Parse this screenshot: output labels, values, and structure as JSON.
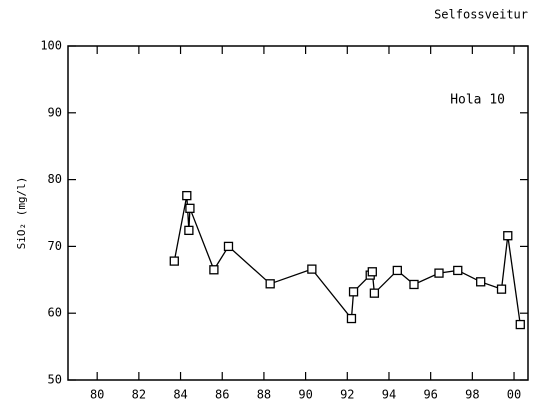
{
  "chart_data": {
    "type": "line",
    "title": "Selfossveitur",
    "annotation": "Hola 10",
    "ylabel": "SiO₂ (mg/l)",
    "series": [
      {
        "name": "Hola 10",
        "color": "#000000",
        "x": [
          83.7,
          84.3,
          84.4,
          84.45,
          85.6,
          86.3,
          88.3,
          90.3,
          92.2,
          92.3,
          93.1,
          93.2,
          93.3,
          94.4,
          95.2,
          96.4,
          97.3,
          98.4,
          99.4,
          99.7,
          100.3
        ],
        "values": [
          67.8,
          77.6,
          72.4,
          75.7,
          66.5,
          70.0,
          64.4,
          66.6,
          59.2,
          63.2,
          65.7,
          66.2,
          63.0,
          66.4,
          64.3,
          66.0,
          66.4,
          64.7,
          63.6,
          71.6,
          58.3
        ]
      }
    ],
    "xlim": [
      78.6,
      100.67
    ],
    "ylim": [
      50,
      100
    ],
    "xticks": [
      80,
      82,
      84,
      86,
      88,
      90,
      92,
      94,
      96,
      98,
      {
        "value": 100,
        "label": "00"
      }
    ],
    "yticks": [
      50,
      60,
      70,
      80,
      90,
      100
    ]
  }
}
